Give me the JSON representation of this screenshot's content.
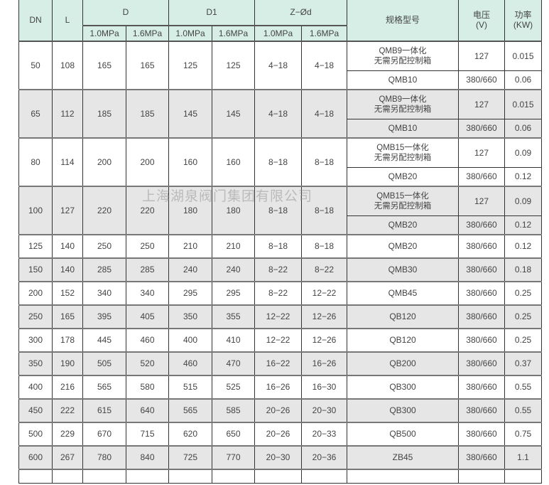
{
  "header": {
    "dn": "DN",
    "l": "L",
    "d": "D",
    "d1": "D1",
    "zd": "Z−Ød",
    "p10": "1.0MPa",
    "p16": "1.6MPa",
    "model": "规格型号",
    "voltage": "电压\n(V)",
    "power": "功率\n(KW)"
  },
  "double_rows": [
    {
      "dn": "50",
      "l": "108",
      "d10": "165",
      "d16": "165",
      "d110": "125",
      "d116": "125",
      "z10": "4−18",
      "z16": "4−18",
      "model1": "QMB9一体化\n无需另配控制箱",
      "v1": "127",
      "p1": "0.015",
      "model2": "QMB10",
      "v2": "380/660",
      "p2": "0.06"
    },
    {
      "dn": "65",
      "l": "112",
      "d10": "185",
      "d16": "185",
      "d110": "145",
      "d116": "145",
      "z10": "4−18",
      "z16": "4−18",
      "model1": "QMB9一体化\n无需另配控制箱",
      "v1": "127",
      "p1": "0.015",
      "model2": "QMB10",
      "v2": "380/660",
      "p2": "0.06"
    },
    {
      "dn": "80",
      "l": "114",
      "d10": "200",
      "d16": "200",
      "d110": "160",
      "d116": "160",
      "z10": "8−18",
      "z16": "8−18",
      "model1": "QMB15一体化\n无需另配控制箱",
      "v1": "127",
      "p1": "0.09",
      "model2": "QMB20",
      "v2": "380/660",
      "p2": "0.12"
    },
    {
      "dn": "100",
      "l": "127",
      "d10": "220",
      "d16": "220",
      "d110": "180",
      "d116": "180",
      "z10": "8−18",
      "z16": "8−18",
      "model1": "QMB15一体化\n无需另配控制箱",
      "v1": "127",
      "p1": "0.09",
      "model2": "QMB20",
      "v2": "380/660",
      "p2": "0.12"
    }
  ],
  "single_rows": [
    [
      "125",
      "140",
      "250",
      "250",
      "210",
      "210",
      "8−18",
      "8−18",
      "QMB20",
      "380/660",
      "0.12"
    ],
    [
      "150",
      "140",
      "285",
      "285",
      "240",
      "240",
      "8−22",
      "8−22",
      "QMB30",
      "380/660",
      "0.18"
    ],
    [
      "200",
      "152",
      "340",
      "340",
      "295",
      "295",
      "8−22",
      "12−22",
      "QMB45",
      "380/660",
      "0.25"
    ],
    [
      "250",
      "165",
      "395",
      "405",
      "350",
      "355",
      "12−22",
      "12−26",
      "QB120",
      "380/660",
      "0.25"
    ],
    [
      "300",
      "178",
      "445",
      "460",
      "400",
      "410",
      "12−22",
      "12−26",
      "QB120",
      "380/660",
      "0.25"
    ],
    [
      "350",
      "190",
      "505",
      "520",
      "460",
      "470",
      "16−22",
      "16−26",
      "QB200",
      "380/660",
      "0.37"
    ],
    [
      "400",
      "216",
      "565",
      "580",
      "515",
      "525",
      "16−26",
      "16−30",
      "QB300",
      "380/660",
      "0.55"
    ],
    [
      "450",
      "222",
      "615",
      "640",
      "565",
      "585",
      "20−26",
      "20−30",
      "QB300",
      "380/660",
      "0.55"
    ],
    [
      "500",
      "229",
      "670",
      "715",
      "620",
      "650",
      "20−26",
      "20−33",
      "QB500",
      "380/660",
      "0.75"
    ],
    [
      "600",
      "267",
      "780",
      "840",
      "725",
      "770",
      "20−30",
      "20−36",
      "ZB45",
      "380/660",
      "1.1"
    ]
  ],
  "watermark": "上海湖泉阀门集团有限公司",
  "colors": {
    "header_bg": "#d6eee6",
    "shade_row": "#e6e6e6"
  }
}
